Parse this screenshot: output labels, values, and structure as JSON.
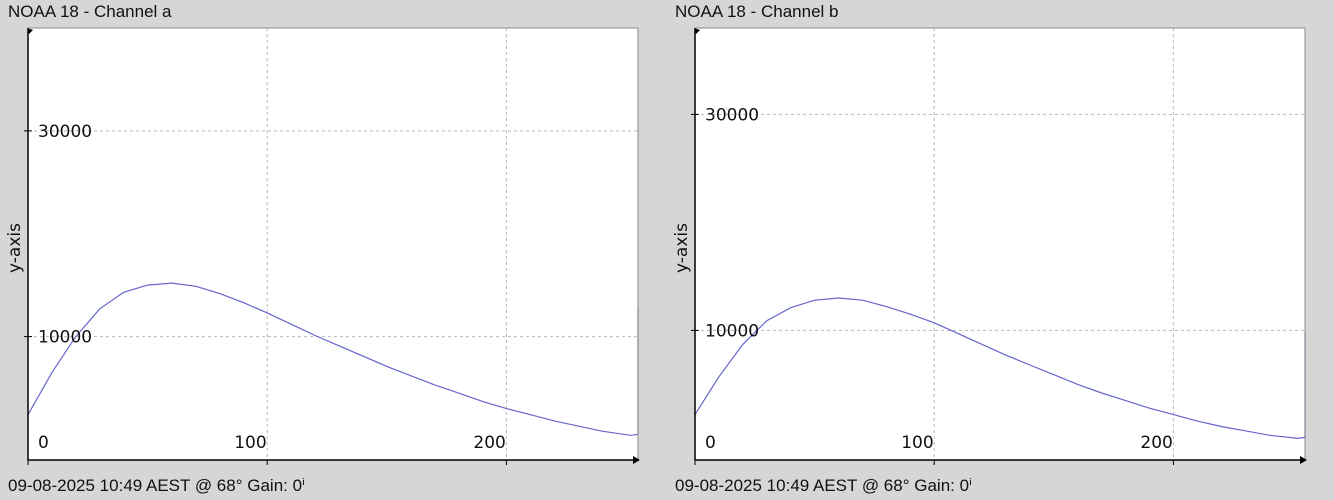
{
  "panels": [
    {
      "title": "NOAA 18 - Channel a",
      "footer": "09-08-2025 10:49 AEST @ 68° Gain: 0ⁱ"
    },
    {
      "title": "NOAA 18 - Channel b",
      "footer": "09-08-2025 10:49 AEST @ 68° Gain: 0ⁱ"
    }
  ],
  "colors": {
    "series": "#6666cc",
    "grid": "#b8b8b8",
    "axis": "#000000",
    "background": "#ffffff"
  },
  "chart_data": [
    {
      "type": "line",
      "title": "NOAA 18 - Channel a",
      "xlabel": "",
      "ylabel": "y-axis",
      "xlim": [
        0,
        255
      ],
      "ylim": [
        -2000,
        40000
      ],
      "xticks": [
        0,
        100,
        200
      ],
      "yticks": [
        10000,
        30000
      ],
      "grid": true,
      "series": [
        {
          "x": [
            0,
            10,
            20,
            30,
            40,
            50,
            60,
            70,
            80,
            90,
            100,
            110,
            120,
            130,
            140,
            150,
            160,
            170,
            180,
            190,
            200,
            210,
            220,
            230,
            240,
            252,
            255,
            255
          ],
          "y": [
            2400,
            6500,
            10000,
            12700,
            14300,
            15000,
            15200,
            14900,
            14200,
            13300,
            12300,
            11200,
            10100,
            9100,
            8100,
            7100,
            6200,
            5300,
            4500,
            3700,
            3000,
            2400,
            1800,
            1300,
            800,
            400,
            500,
            12800
          ]
        }
      ]
    },
    {
      "type": "line",
      "title": "NOAA 18 - Channel b",
      "xlabel": "",
      "ylabel": "y-axis",
      "xlim": [
        0,
        255
      ],
      "ylim": [
        -2000,
        38000
      ],
      "xticks": [
        0,
        100,
        200
      ],
      "yticks": [
        10000,
        30000
      ],
      "grid": true,
      "series": [
        {
          "x": [
            0,
            10,
            20,
            30,
            40,
            50,
            60,
            70,
            80,
            90,
            100,
            110,
            120,
            130,
            140,
            150,
            160,
            170,
            180,
            190,
            200,
            210,
            220,
            230,
            240,
            252,
            255,
            255
          ],
          "y": [
            2200,
            5700,
            8700,
            10900,
            12100,
            12800,
            13000,
            12800,
            12200,
            11500,
            10700,
            9700,
            8700,
            7700,
            6800,
            5900,
            5000,
            4200,
            3500,
            2800,
            2200,
            1600,
            1100,
            700,
            300,
            0,
            100,
            9800
          ]
        }
      ]
    }
  ]
}
